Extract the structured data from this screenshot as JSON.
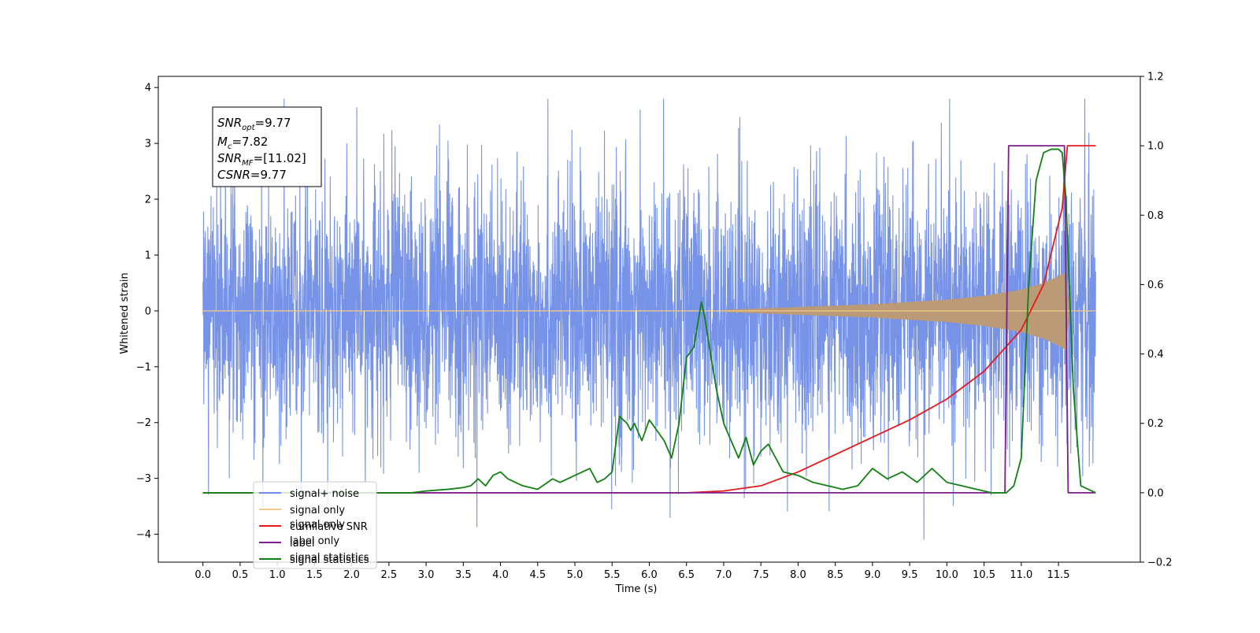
{
  "chart_data": {
    "type": "line",
    "xlabel": "Time (s)",
    "ylabel_left": "Whitened strain",
    "ylabel_right": "",
    "xlim": [
      -0.6,
      12.6
    ],
    "ylim_left": [
      -4.5,
      4.2
    ],
    "ylim_right": [
      -0.2,
      1.2
    ],
    "x_ticks": [
      "0.0",
      "0.5",
      "1.0",
      "1.5",
      "2.0",
      "2.5",
      "3.0",
      "3.5",
      "4.0",
      "4.5",
      "5.0",
      "5.5",
      "6.0",
      "6.5",
      "7.0",
      "7.5",
      "8.0",
      "8.5",
      "9.0",
      "9.5",
      "10.0",
      "10.5",
      "11.0",
      "11.5"
    ],
    "y_ticks_left": [
      "4",
      "3",
      "2",
      "1",
      "0",
      "−1",
      "−2",
      "−3",
      "−4"
    ],
    "y_ticks_right": [
      "1.2",
      "1.0",
      "0.8",
      "0.6",
      "0.4",
      "0.2",
      "0.0",
      "−0.2"
    ],
    "grid": false,
    "legend_position": "lower-left",
    "legend": [
      "signal+ noise",
      "signal only",
      "cumilative SNR",
      "label",
      "signal statistics"
    ],
    "hidden_legend_fragments": [
      "signal only",
      "label only",
      "signal statistics"
    ],
    "info_box": {
      "line1_base": "SNR",
      "line1_sub": "opt",
      "line1_value": "=9.77",
      "line2_base": "M",
      "line2_sub": "c",
      "line2_value": "=7.82",
      "line3_base": "SNR",
      "line3_sub": "MF",
      "line3_value": "=[11.02]",
      "line4_base": "CSNR",
      "line4_value": "=9.77"
    },
    "series": [
      {
        "name": "signal+ noise",
        "axis": "left",
        "color": "#6f8de6",
        "x_range": [
          0.0,
          12.0
        ],
        "noise_amplitude_typical": 2.4,
        "noise_amplitude_min_max": [
          -4.1,
          3.8
        ]
      },
      {
        "name": "signal only",
        "axis": "left",
        "color": "#f5c88a",
        "x_range": [
          0.0,
          12.0
        ],
        "fill_color": "#bb9a77",
        "envelope_x": [
          7.0,
          8.0,
          9.0,
          10.0,
          10.5,
          11.0,
          11.3,
          11.5,
          11.6,
          11.65
        ],
        "envelope_y": [
          0.02,
          0.07,
          0.12,
          0.2,
          0.27,
          0.38,
          0.5,
          0.62,
          0.7,
          0.0
        ]
      },
      {
        "name": "cumilative SNR",
        "axis": "right",
        "color": "#e41a1c",
        "x": [
          0.0,
          6.5,
          7.0,
          7.5,
          8.0,
          8.5,
          9.0,
          9.5,
          10.0,
          10.5,
          11.0,
          11.3,
          11.55,
          11.62,
          12.0
        ],
        "y": [
          0.0,
          0.0,
          0.005,
          0.02,
          0.06,
          0.11,
          0.16,
          0.21,
          0.27,
          0.35,
          0.47,
          0.6,
          0.82,
          1.0,
          1.0
        ]
      },
      {
        "name": "label",
        "axis": "right",
        "color": "#7b1f8a",
        "x": [
          0.0,
          10.78,
          10.83,
          11.58,
          11.63,
          12.0
        ],
        "y": [
          0.0,
          0.0,
          1.0,
          1.0,
          0.0,
          0.0
        ]
      },
      {
        "name": "signal statistics",
        "axis": "right",
        "color": "#138013",
        "x": [
          0.0,
          2.8,
          3.0,
          3.3,
          3.5,
          3.6,
          3.7,
          3.8,
          3.9,
          4.0,
          4.1,
          4.2,
          4.3,
          4.5,
          4.6,
          4.7,
          4.8,
          5.0,
          5.2,
          5.3,
          5.4,
          5.5,
          5.6,
          5.7,
          5.75,
          5.8,
          5.9,
          6.0,
          6.1,
          6.2,
          6.3,
          6.4,
          6.5,
          6.6,
          6.7,
          6.75,
          6.8,
          6.9,
          7.0,
          7.1,
          7.2,
          7.3,
          7.4,
          7.5,
          7.6,
          7.7,
          7.8,
          8.0,
          8.2,
          8.4,
          8.6,
          8.8,
          9.0,
          9.2,
          9.4,
          9.6,
          9.8,
          10.0,
          10.2,
          10.4,
          10.6,
          10.8,
          10.9,
          11.0,
          11.1,
          11.2,
          11.3,
          11.4,
          11.5,
          11.55,
          11.6,
          11.7,
          11.8,
          12.0
        ],
        "y": [
          0.0,
          0.0,
          0.005,
          0.01,
          0.015,
          0.02,
          0.04,
          0.02,
          0.05,
          0.06,
          0.04,
          0.03,
          0.02,
          0.01,
          0.025,
          0.04,
          0.03,
          0.05,
          0.07,
          0.03,
          0.04,
          0.06,
          0.22,
          0.2,
          0.18,
          0.2,
          0.15,
          0.21,
          0.18,
          0.15,
          0.1,
          0.2,
          0.39,
          0.42,
          0.55,
          0.5,
          0.43,
          0.3,
          0.2,
          0.15,
          0.1,
          0.16,
          0.08,
          0.12,
          0.14,
          0.1,
          0.06,
          0.05,
          0.03,
          0.02,
          0.01,
          0.02,
          0.07,
          0.04,
          0.06,
          0.03,
          0.07,
          0.03,
          0.02,
          0.01,
          0.0,
          0.0,
          0.02,
          0.1,
          0.6,
          0.9,
          0.98,
          0.99,
          0.99,
          0.98,
          0.85,
          0.3,
          0.02,
          0.0
        ]
      }
    ]
  }
}
